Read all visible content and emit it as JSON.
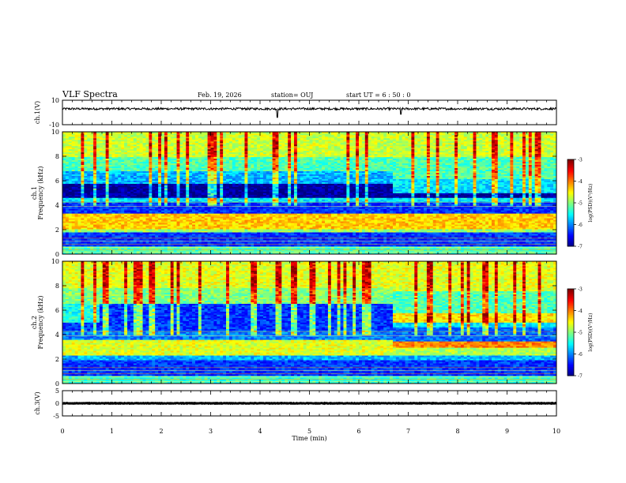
{
  "header": {
    "title": "VLF Spectra",
    "date": "Feb. 19, 2026",
    "station": "station= OUJ",
    "start": "start  UT  =   6  : 50 : 0"
  },
  "chart_data": [
    {
      "type": "line",
      "name": "ch1-waveform",
      "ylabel": "ch.1(V)",
      "ylim": [
        -10,
        10
      ],
      "yticks": [
        "10",
        "-10"
      ],
      "xlim": [
        0,
        10
      ],
      "baseline": 3.0,
      "noise": 0.9,
      "spikes": [
        {
          "x": 4.35,
          "y": -4
        },
        {
          "x": 6.85,
          "y": -1.5
        }
      ]
    },
    {
      "type": "heatmap",
      "name": "ch1-spectrogram",
      "ylabel": "ch.1\nFrequency  (kHz)",
      "ylim": [
        0,
        10
      ],
      "yticks": [
        "0",
        "2",
        "4",
        "6",
        "8",
        "10"
      ],
      "xlim": [
        0,
        10
      ],
      "segments": [
        {
          "t": [
            0,
            6.7
          ],
          "bands": [
            [
              0,
              0.7,
              -5.2
            ],
            [
              0.7,
              1.8,
              -6.3
            ],
            [
              1.8,
              2.1,
              -4.9
            ],
            [
              2.1,
              3.3,
              -4.3
            ],
            [
              3.3,
              4.2,
              -6.3
            ],
            [
              4.2,
              4.6,
              -5.6
            ],
            [
              4.6,
              5.8,
              -6.9
            ],
            [
              5.8,
              6.8,
              -5.8
            ],
            [
              6.8,
              8.0,
              -5.2
            ],
            [
              8.0,
              10,
              -4.7
            ]
          ]
        },
        {
          "t": [
            6.7,
            10
          ],
          "bands": [
            [
              0,
              0.7,
              -5.2
            ],
            [
              0.7,
              1.8,
              -6.3
            ],
            [
              1.8,
              2.1,
              -4.9
            ],
            [
              2.1,
              3.3,
              -4.3
            ],
            [
              3.3,
              4.2,
              -6.3
            ],
            [
              4.2,
              4.6,
              -5.6
            ],
            [
              4.6,
              5.0,
              -6.9
            ],
            [
              5.0,
              6.2,
              -5.6
            ],
            [
              6.2,
              8.0,
              -5.2
            ],
            [
              8.0,
              10,
              -4.7
            ]
          ]
        }
      ],
      "colorbar": {
        "label": "log(PSD)(V²/Hz)",
        "ticks": [
          "-3",
          "-4",
          "-5",
          "-6",
          "-7"
        ],
        "range": [
          -7,
          -3
        ]
      }
    },
    {
      "type": "heatmap",
      "name": "ch2-spectrogram",
      "ylabel": "ch.2\nFrequency  (kHz)",
      "ylim": [
        0,
        10
      ],
      "yticks": [
        "0",
        "2",
        "4",
        "6",
        "8",
        "10"
      ],
      "xlim": [
        0,
        10
      ],
      "segments": [
        {
          "t": [
            0,
            0.75
          ],
          "bands": [
            [
              0,
              0.7,
              -5.3
            ],
            [
              0.7,
              1.9,
              -6.3
            ],
            [
              1.9,
              2.3,
              -5.8
            ],
            [
              2.3,
              3.6,
              -4.6
            ],
            [
              3.6,
              4.3,
              -6.0
            ],
            [
              4.3,
              5.0,
              -6.3
            ],
            [
              5.0,
              6.6,
              -5.4
            ],
            [
              6.6,
              7.8,
              -5.0
            ],
            [
              7.8,
              10,
              -4.6
            ]
          ]
        },
        {
          "t": [
            0.75,
            6.7
          ],
          "bands": [
            [
              0,
              0.7,
              -5.3
            ],
            [
              0.7,
              1.9,
              -6.3
            ],
            [
              1.9,
              2.3,
              -5.8
            ],
            [
              2.3,
              3.6,
              -4.6
            ],
            [
              3.6,
              4.3,
              -6.0
            ],
            [
              4.3,
              6.6,
              -6.3
            ],
            [
              6.6,
              7.8,
              -5.0
            ],
            [
              7.8,
              10,
              -4.6
            ]
          ]
        },
        {
          "t": [
            6.7,
            10
          ],
          "bands": [
            [
              0,
              0.7,
              -5.3
            ],
            [
              0.7,
              1.9,
              -6.3
            ],
            [
              1.9,
              2.3,
              -5.8
            ],
            [
              2.3,
              2.9,
              -4.8
            ],
            [
              2.9,
              3.5,
              -4.0
            ],
            [
              3.5,
              4.6,
              -6.1
            ],
            [
              4.6,
              5.0,
              -5.6
            ],
            [
              5.0,
              5.8,
              -4.4
            ],
            [
              5.8,
              7.6,
              -5.2
            ],
            [
              7.6,
              10,
              -4.6
            ]
          ]
        }
      ],
      "colorbar": {
        "label": "log(PSD)(V²/Hz)",
        "ticks": [
          "-3",
          "-4",
          "-5",
          "-6",
          "-7"
        ],
        "range": [
          -7,
          -3
        ]
      }
    },
    {
      "type": "line",
      "name": "ch3-waveform",
      "ylabel": "ch.3(V)",
      "ylim": [
        -5,
        5
      ],
      "yticks": [
        "5",
        "0",
        "-5"
      ],
      "xlim": [
        0,
        10
      ],
      "baseline": 0,
      "noise": 0.1,
      "spikes": []
    }
  ],
  "x_axis": {
    "label": "Time  (min)",
    "ticks": [
      "0",
      "1",
      "2",
      "3",
      "4",
      "5",
      "6",
      "7",
      "8",
      "9",
      "10"
    ]
  }
}
